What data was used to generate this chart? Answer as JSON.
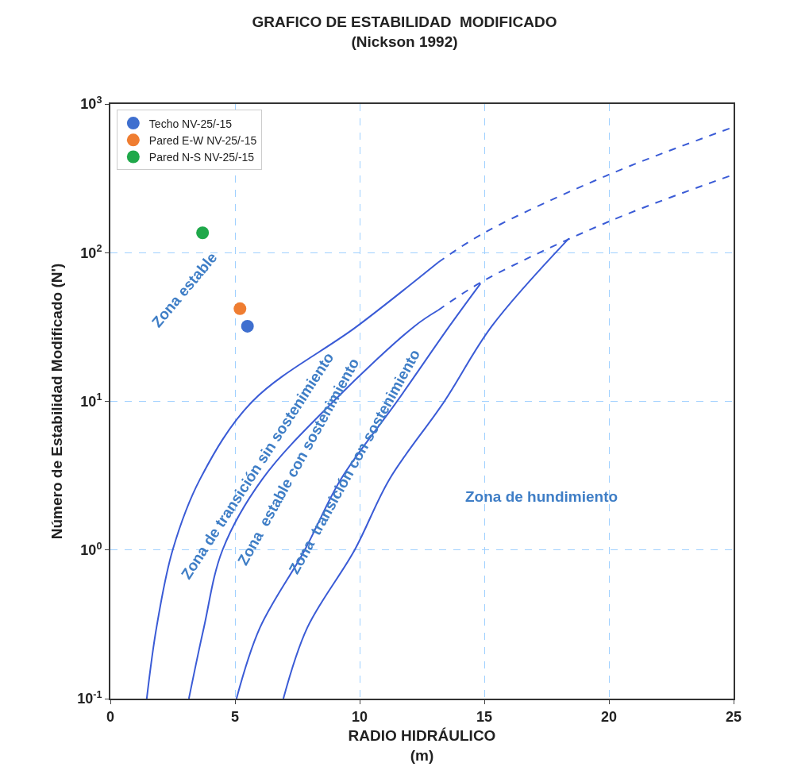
{
  "chart_data": {
    "type": "scatter",
    "title": "GRAFICO DE ESTABILIDAD  MODIFICADO\n(Nickson 1992)",
    "xlabel": "RADIO HIDRÁULICO\n(m)",
    "ylabel": "Número de Estabilidad Modificado (N')",
    "log": "y",
    "grid": true,
    "legend": "top left",
    "marker": "circle",
    "xlim": [
      0,
      25
    ],
    "xticks": [
      0,
      5,
      10,
      15,
      20,
      25
    ],
    "ylim": [
      0.1,
      1000
    ],
    "yticks": [
      {
        "value": 0.1,
        "label": "10$^{-1}$"
      },
      {
        "value": 1,
        "label": "10$^{0}$"
      },
      {
        "value": 10,
        "label": "10$^{1}$"
      },
      {
        "value": 100,
        "label": "10$^{2}$"
      },
      {
        "value": 1000,
        "label": "10$^{3}$"
      }
    ],
    "series": [
      {
        "name": "Techo NV-25/-15",
        "color": "#3f6fcf",
        "x": [
          5.5
        ],
        "values": [
          32
        ]
      },
      {
        "name": "Pared E-W NV-25/-15",
        "color": "#ef7d31",
        "x": [
          5.2
        ],
        "values": [
          42
        ]
      },
      {
        "name": "Pared N-S NV-25/-15",
        "color": "#1fa84a",
        "x": [
          3.7
        ],
        "values": [
          136
        ]
      },
      {
        "color": "#3a5bd6",
        "type": "line",
        "line_style": "solid",
        "marker": "none",
        "x": [
          1.46,
          1.85,
          2.5,
          3.6,
          5.7,
          9.9,
          13.15
        ],
        "values": [
          0.1,
          0.3,
          1,
          3,
          10,
          32,
          86
        ]
      },
      {
        "color": "#3a5bd6",
        "type": "line",
        "line_style": "dashed",
        "marker": "none",
        "x": [
          13.15,
          15,
          20,
          25
        ],
        "values": [
          86,
          136,
          335,
          700
        ]
      },
      {
        "color": "#3a5bd6",
        "type": "line",
        "line_style": "solid",
        "marker": "none",
        "x": [
          3.15,
          3.75,
          4.5,
          6.1,
          8.95,
          12.2,
          13.15
        ],
        "values": [
          0.1,
          0.3,
          1,
          3,
          10,
          32,
          41
        ]
      },
      {
        "color": "#3a5bd6",
        "type": "line",
        "line_style": "dashed",
        "marker": "none",
        "x": [
          13.15,
          15,
          20,
          25
        ],
        "values": [
          41,
          65,
          162,
          335
        ]
      },
      {
        "color": "#3a5bd6",
        "type": "line",
        "line_style": "solid",
        "marker": "none",
        "x": [
          5.06,
          6.0,
          7.8,
          9.25,
          11.5,
          13.6,
          14.85
        ],
        "values": [
          0.1,
          0.3,
          1,
          3,
          10,
          32,
          62
        ]
      },
      {
        "color": "#3a5bd6",
        "type": "line",
        "line_style": "solid",
        "marker": "none",
        "x": [
          6.94,
          7.9,
          9.8,
          11.2,
          13.4,
          15.3,
          18.4
        ],
        "values": [
          0.1,
          0.3,
          1,
          3,
          10,
          32,
          125
        ]
      }
    ],
    "annotations": [
      "Zona estable",
      "Zona de transición sin sostenimiento",
      "Zona  estable con sostenimiento",
      "Zona  transición con sostenimiento",
      "Zona de hundimiento"
    ]
  }
}
